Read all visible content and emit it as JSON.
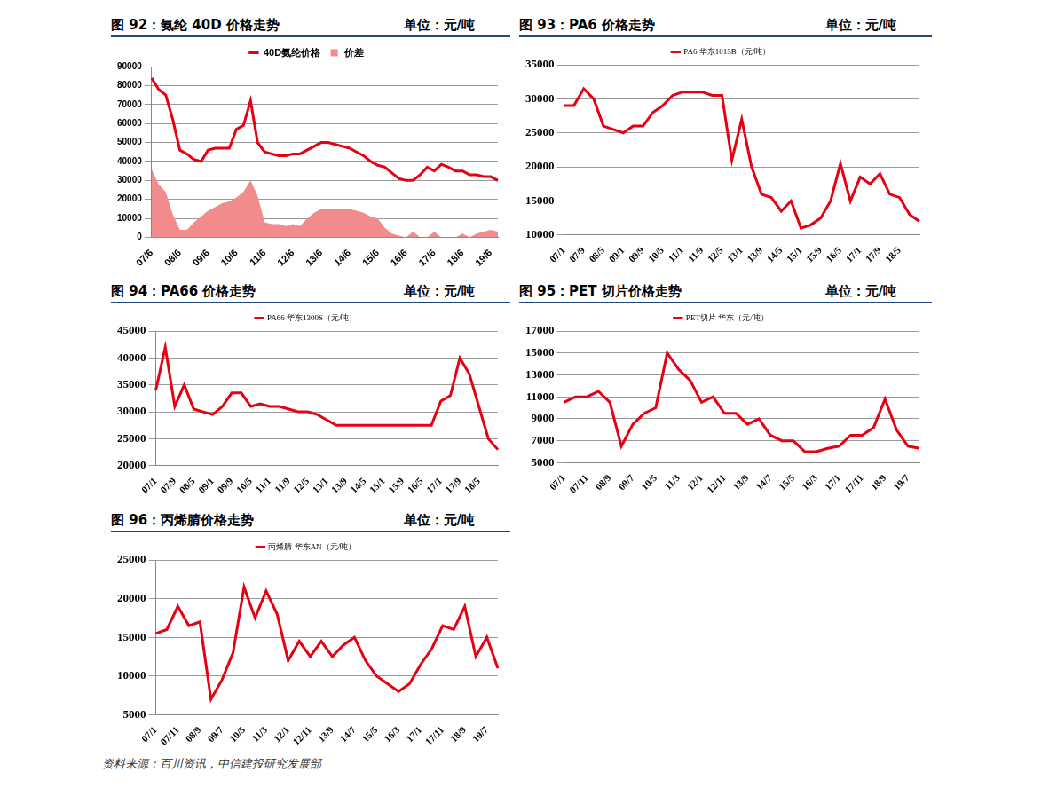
{
  "chart_data": [
    {
      "type": "line",
      "title": "图 92：氨纶 40D 价格走势",
      "subtitle": "单位：元/吨",
      "categories": [
        "07/6",
        null,
        null,
        null,
        "08/6",
        null,
        null,
        null,
        "09/6",
        null,
        null,
        null,
        "10/6",
        null,
        null,
        null,
        "11/6",
        null,
        null,
        null,
        "12/6",
        null,
        null,
        null,
        "13/6",
        null,
        null,
        null,
        "14/6",
        null,
        null,
        null,
        "15/6",
        null,
        null,
        null,
        "16/6",
        null,
        null,
        null,
        "17/6",
        null,
        null,
        null,
        "18/6",
        null,
        null,
        null,
        "19/6",
        null
      ],
      "series": [
        {
          "name": "价差",
          "type": "area",
          "color": "#f28b8b",
          "values": [
            36000,
            28000,
            24000,
            12000,
            4000,
            4000,
            8000,
            11000,
            14000,
            16000,
            18000,
            19000,
            21000,
            24000,
            30000,
            22000,
            8000,
            7000,
            7000,
            6000,
            7000,
            6000,
            10000,
            13000,
            15000,
            15000,
            15000,
            15000,
            15000,
            14000,
            13000,
            11000,
            10000,
            5000,
            2000,
            1000,
            0,
            3000,
            0,
            0,
            3000,
            0,
            0,
            0,
            2000,
            0,
            2000,
            3000,
            4000,
            3000
          ]
        },
        {
          "name": "40D氨纶价格",
          "type": "line",
          "color": "#e60012",
          "values": [
            84000,
            78000,
            75000,
            62000,
            46000,
            44000,
            41000,
            40000,
            46000,
            47000,
            47000,
            47000,
            57000,
            59000,
            72000,
            50000,
            45000,
            44000,
            43000,
            43000,
            44000,
            44000,
            46000,
            48000,
            50000,
            50000,
            49000,
            48000,
            47000,
            45000,
            43000,
            40000,
            38000,
            37000,
            34000,
            31000,
            30000,
            30000,
            33000,
            37000,
            35000,
            38500,
            37000,
            35000,
            35000,
            33000,
            33000,
            32000,
            32000,
            30000
          ]
        }
      ],
      "ylim": [
        0,
        90000
      ],
      "yticks": [
        0,
        10000,
        20000,
        30000,
        40000,
        50000,
        60000,
        70000,
        80000,
        90000
      ],
      "grid": true,
      "legend": "top"
    },
    {
      "type": "line",
      "title": "图 93：PA6 价格走势",
      "subtitle": "单位：元/吨",
      "categories": [
        "07/1",
        null,
        "07/9",
        null,
        "08/5",
        null,
        "09/1",
        null,
        "09/9",
        null,
        "10/5",
        null,
        "11/1",
        null,
        "11/9",
        null,
        "12/5",
        null,
        "13/1",
        null,
        "13/9",
        null,
        "14/5",
        null,
        "15/1",
        null,
        "15/9",
        null,
        "16/5",
        null,
        "17/1",
        null,
        "17/9",
        null,
        "18/5",
        null,
        null
      ],
      "series": [
        {
          "name": "PA6 华东1013B（元/吨）",
          "type": "line",
          "color": "#e60012",
          "values": [
            29000,
            29000,
            31500,
            30000,
            26000,
            25500,
            25000,
            26000,
            26000,
            28000,
            29000,
            30500,
            31000,
            31000,
            31000,
            30500,
            30500,
            21000,
            27000,
            20000,
            16000,
            15500,
            13500,
            15000,
            11000,
            11500,
            12500,
            15000,
            20500,
            15000,
            18500,
            17500,
            19000,
            16000,
            15500,
            13000,
            12000
          ]
        }
      ],
      "ylim": [
        10000,
        35000
      ],
      "yticks": [
        10000,
        15000,
        20000,
        25000,
        30000,
        35000
      ],
      "grid": true,
      "legend": "top"
    },
    {
      "type": "line",
      "title": "图 94：PA66 价格走势",
      "subtitle": "单位：元/吨",
      "categories": [
        "07/1",
        null,
        "07/9",
        null,
        "08/5",
        null,
        "09/1",
        null,
        "09/9",
        null,
        "10/5",
        null,
        "11/1",
        null,
        "11/9",
        null,
        "12/5",
        null,
        "13/1",
        null,
        "13/9",
        null,
        "14/5",
        null,
        "15/1",
        null,
        "15/9",
        null,
        "16/5",
        null,
        "17/1",
        null,
        "17/9",
        null,
        "18/5",
        null,
        null
      ],
      "series": [
        {
          "name": "PA66 华东1300S（元/吨）",
          "type": "line",
          "color": "#e60012",
          "values": [
            34000,
            42000,
            31000,
            35000,
            30500,
            30000,
            29500,
            31000,
            33500,
            33500,
            31000,
            31500,
            31000,
            31000,
            30500,
            30000,
            30000,
            29500,
            28500,
            27500,
            27500,
            27500,
            27500,
            27500,
            27500,
            27500,
            27500,
            27500,
            27500,
            27500,
            32000,
            33000,
            40000,
            37000,
            31000,
            25000,
            23000
          ]
        }
      ],
      "ylim": [
        20000,
        45000
      ],
      "yticks": [
        20000,
        25000,
        30000,
        35000,
        40000,
        45000
      ],
      "grid": true,
      "legend": "top"
    },
    {
      "type": "line",
      "title": "图 95：PET 切片价格走势",
      "subtitle": "单位：元/吨",
      "categories": [
        "07/1",
        null,
        "07/11",
        null,
        "08/9",
        null,
        "09/7",
        null,
        "10/5",
        null,
        "11/3",
        null,
        "12/1",
        null,
        "12/11",
        null,
        "13/9",
        null,
        "14/7",
        null,
        "15/5",
        null,
        "16/3",
        null,
        "17/1",
        null,
        "17/11",
        null,
        "18/9",
        null,
        "19/7",
        null
      ],
      "series": [
        {
          "name": "PET切片 华东（元/吨）",
          "type": "line",
          "color": "#e60012",
          "values": [
            10500,
            11000,
            11000,
            11500,
            10500,
            6500,
            8500,
            9500,
            10000,
            15000,
            13500,
            12500,
            10500,
            11000,
            9500,
            9500,
            8500,
            9000,
            7500,
            7000,
            7000,
            6000,
            6000,
            6300,
            6500,
            7500,
            7500,
            8200,
            10800,
            8000,
            6500,
            6300
          ]
        }
      ],
      "ylim": [
        5000,
        17000
      ],
      "yticks": [
        5000,
        7000,
        9000,
        11000,
        13000,
        15000,
        17000
      ],
      "grid": true,
      "legend": "top"
    },
    {
      "type": "line",
      "title": "图 96：丙烯腈价格走势",
      "subtitle": "单位：元/吨",
      "categories": [
        "07/1",
        null,
        "07/11",
        null,
        "08/9",
        null,
        "09/7",
        null,
        "10/5",
        null,
        "11/3",
        null,
        "12/1",
        null,
        "12/11",
        null,
        "13/9",
        null,
        "14/7",
        null,
        "15/5",
        null,
        "16/3",
        null,
        "17/1",
        null,
        "17/11",
        null,
        "18/9",
        null,
        "19/7",
        null
      ],
      "series": [
        {
          "name": "丙烯腈 华东AN（元/吨）",
          "type": "line",
          "color": "#e60012",
          "values": [
            15500,
            16000,
            19000,
            16500,
            17000,
            7000,
            9500,
            13000,
            21500,
            17500,
            21000,
            18000,
            12000,
            14500,
            12500,
            14500,
            12500,
            14000,
            15000,
            12000,
            10000,
            9000,
            8000,
            9000,
            11500,
            13500,
            16500,
            16000,
            19000,
            12500,
            15000,
            11000
          ]
        }
      ],
      "ylim": [
        5000,
        25000
      ],
      "yticks": [
        5000,
        10000,
        15000,
        20000,
        25000
      ],
      "grid": true,
      "legend": "top"
    }
  ],
  "source": "资料来源：百川资讯，中信建投研究发展部"
}
